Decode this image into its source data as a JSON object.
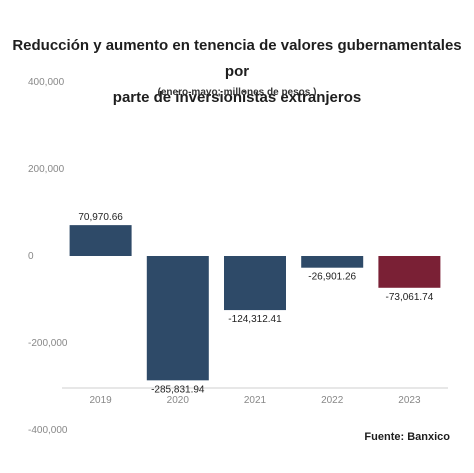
{
  "chart_data": {
    "type": "bar",
    "title": "Reducción y aumento en tenencia de valores gubernamentales por parte de inversionistas extranjeros",
    "title_lines": [
      "Reducción y aumento en tenencia de valores gubernamentales por",
      "parte de inversionistas extranjeros"
    ],
    "subtitle": "(enero-mayo; millones de pesos )",
    "source": "Fuente: Banxico",
    "categories": [
      "2019",
      "2020",
      "2021",
      "2022",
      "2023"
    ],
    "values": [
      70970.66,
      -285831.94,
      -124312.41,
      -26901.26,
      -73061.74
    ],
    "data_labels": [
      "70,970.66",
      "-285,831.94",
      "-124,312.41",
      "-26,901.26",
      "-73,061.74"
    ],
    "bar_colors": [
      "#2e4a68",
      "#2e4a68",
      "#2e4a68",
      "#2e4a68",
      "#7a2035"
    ],
    "yticks": [
      400000,
      200000,
      0,
      -200000,
      -400000
    ],
    "ytick_labels": [
      "400,000",
      "200,000",
      "0",
      "-200,000",
      "-400,000"
    ],
    "ylim": [
      -550000,
      450000
    ],
    "grid": false
  }
}
